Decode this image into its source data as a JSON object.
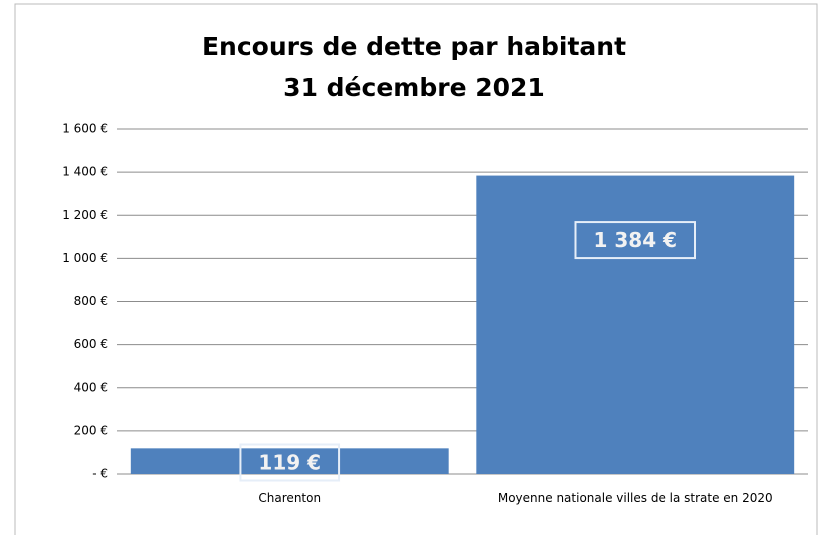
{
  "chart_data": {
    "type": "bar",
    "title": "Encours de dette par habitant",
    "subtitle": "31 décembre 2021",
    "categories": [
      "Charenton",
      "Moyenne nationale villes de la strate en 2020"
    ],
    "values": [
      119,
      1384
    ],
    "value_labels": [
      "119 €",
      "1 384 €"
    ],
    "color": "#4f81bd",
    "ylim": [
      0,
      1600
    ],
    "yticks": [
      {
        "value": 0,
        "label": "-  €"
      },
      {
        "value": 200,
        "label": "200 €"
      },
      {
        "value": 400,
        "label": "400 €"
      },
      {
        "value": 600,
        "label": "600 €"
      },
      {
        "value": 800,
        "label": "800 €"
      },
      {
        "value": 1000,
        "label": "1 000 €"
      },
      {
        "value": 1200,
        "label": "1 200 €"
      },
      {
        "value": 1400,
        "label": "1 400 €"
      },
      {
        "value": 1600,
        "label": "1 600 €"
      }
    ],
    "grid": true
  }
}
